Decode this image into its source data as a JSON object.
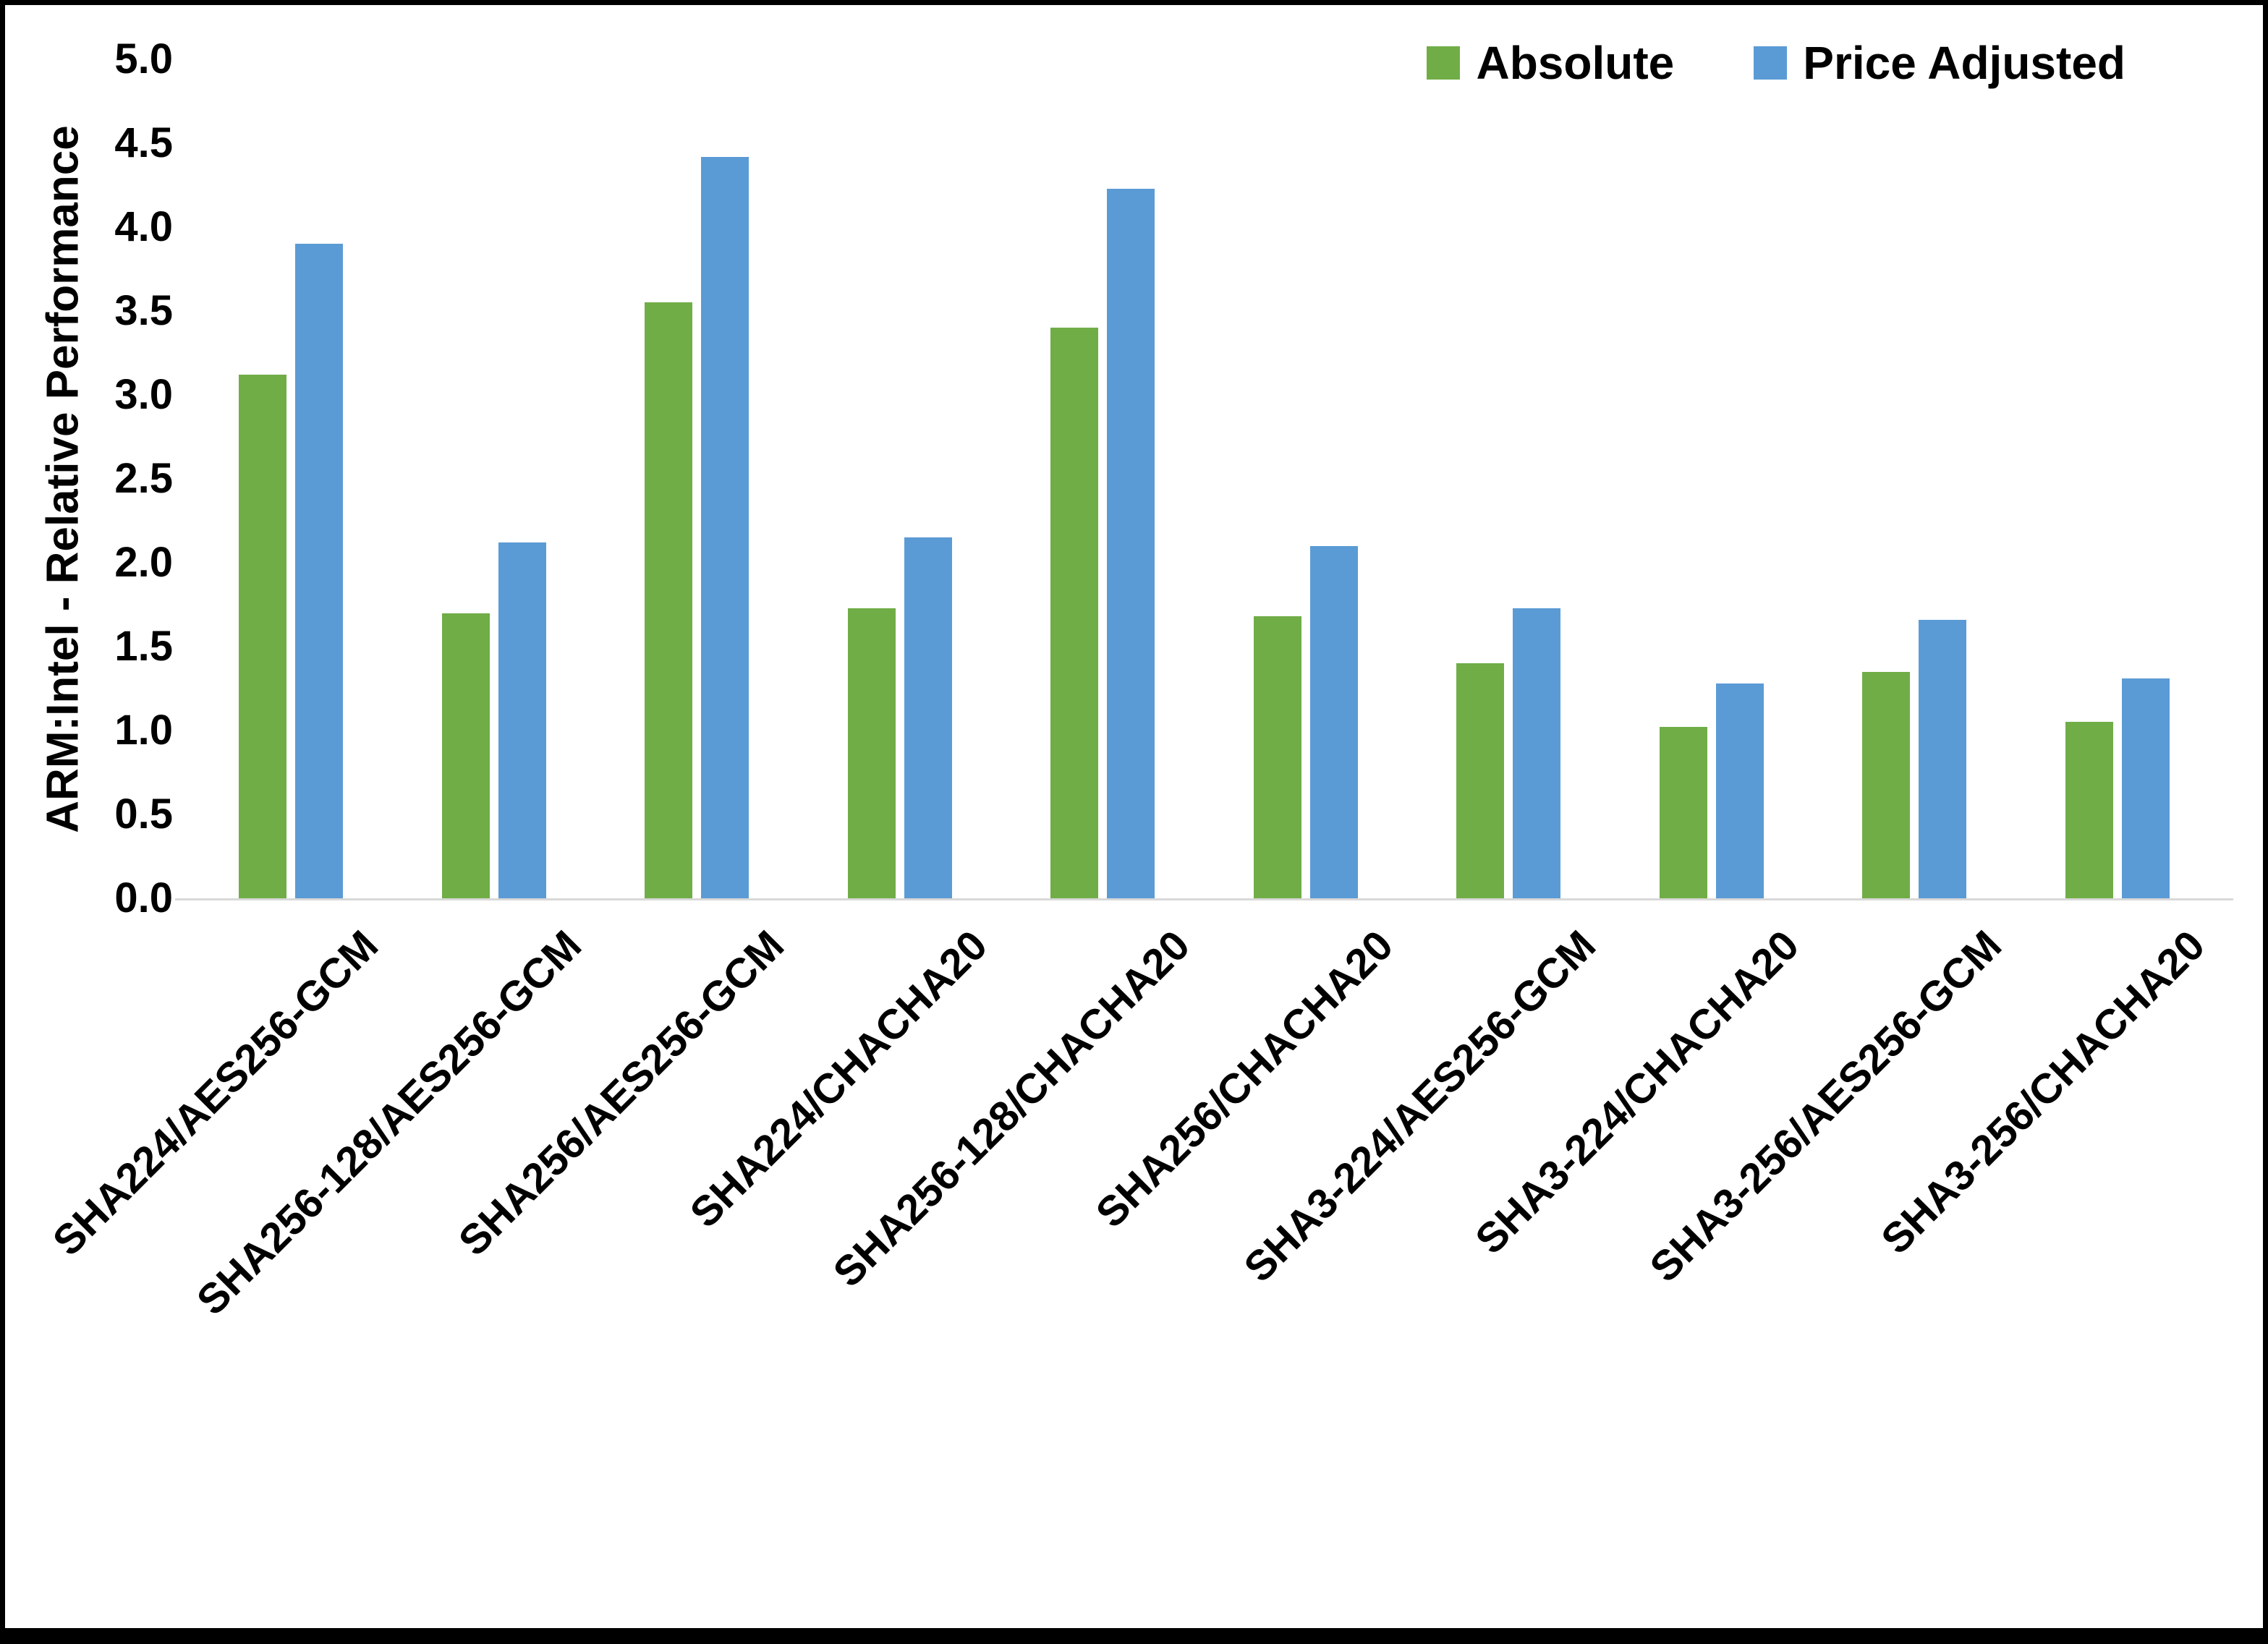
{
  "chart_data": {
    "type": "bar",
    "title": "",
    "xlabel": "",
    "ylabel": "ARM:Intel - Relative Performance",
    "ylim": [
      0,
      5
    ],
    "ytick_step": 0.5,
    "grid": false,
    "legend_position": "top-right",
    "categories": [
      "SHA224/AES256-GCM",
      "SHA256-128/AES256-GCM",
      "SHA256/AES256-GCM",
      "SHA224/CHACHA20",
      "SHA256-128/CHACHA20",
      "SHA256/CHACHA20",
      "SHA3-224/AES256-GCM",
      "SHA3-224/CHACHA20",
      "SHA3-256/AES256-GCM",
      "SHA3-256/CHACHA20"
    ],
    "series": [
      {
        "name": "Absolute",
        "color": "#70AD47",
        "values": [
          3.12,
          1.7,
          3.55,
          1.73,
          3.4,
          1.68,
          1.4,
          1.02,
          1.35,
          1.05
        ]
      },
      {
        "name": "Price Adjusted",
        "color": "#5B9BD5",
        "values": [
          3.9,
          2.12,
          4.42,
          2.15,
          4.23,
          2.1,
          1.73,
          1.28,
          1.66,
          1.31
        ]
      }
    ]
  },
  "colors": {
    "absolute": "#70AD47",
    "price_adjusted": "#5B9BD5",
    "axis_line": "#d9d9d9",
    "text": "#000000"
  }
}
